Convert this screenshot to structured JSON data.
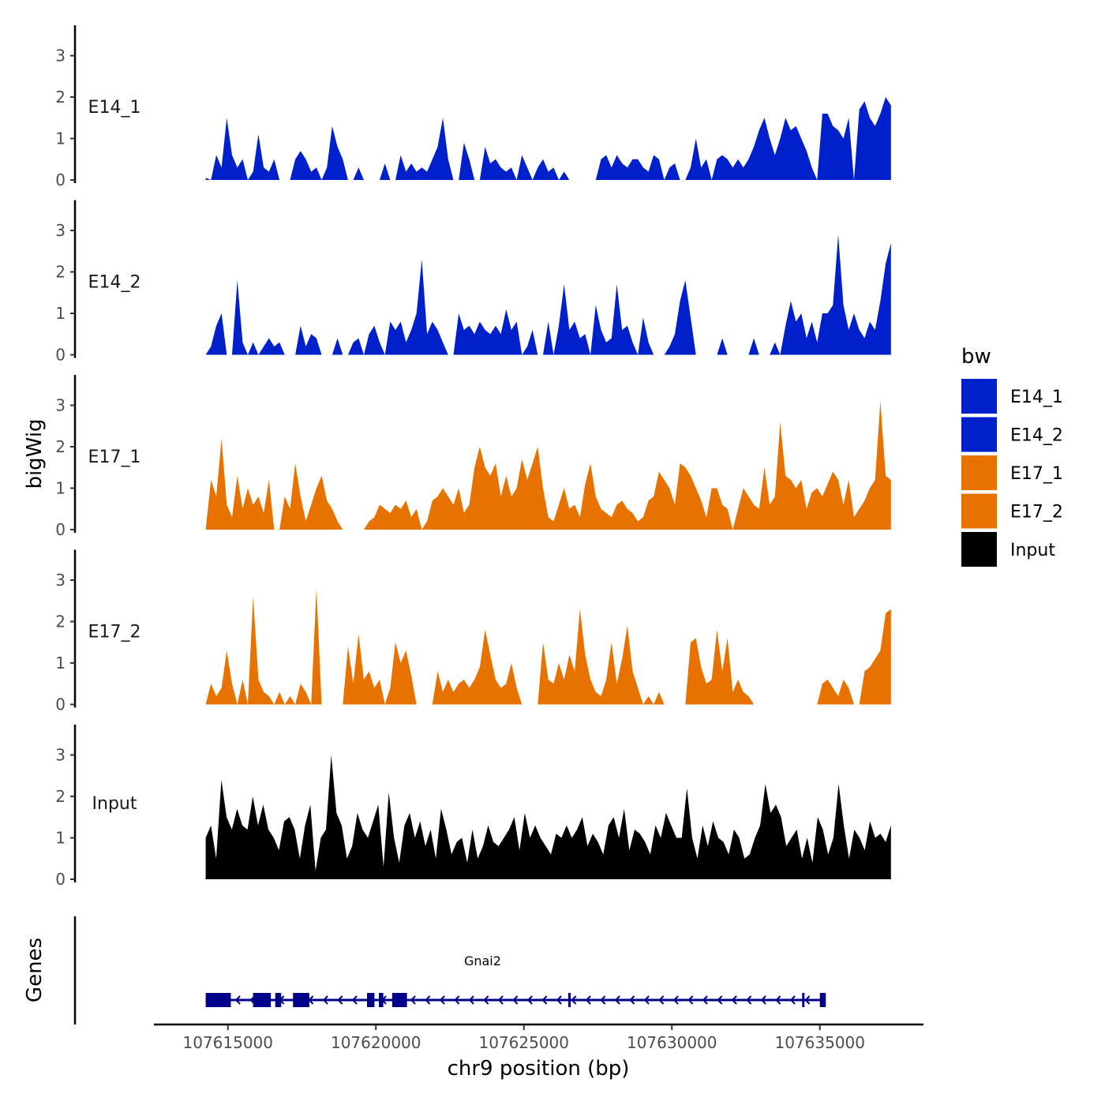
{
  "chart_data": {
    "type": "area",
    "xlabel": "chr9 position (bp)",
    "ylabel": "bigWig",
    "xlim": [
      107612500,
      107638500
    ],
    "data_range": [
      107614250,
      107637400
    ],
    "ylim": [
      0,
      3.8
    ],
    "yticks": [
      0,
      1,
      2,
      3
    ],
    "xticks": [
      107615000,
      107620000,
      107625000,
      107630000,
      107635000
    ],
    "xtick_labels": [
      "107615000",
      "107620000",
      "107625000",
      "107630000",
      "107635000"
    ],
    "tracks": [
      {
        "name": "E14_1",
        "color": "#0020CC",
        "values": [
          0.05,
          0.0,
          0.6,
          0.3,
          1.5,
          0.6,
          0.3,
          0.5,
          0.0,
          0.2,
          1.1,
          0.3,
          0.2,
          0.5,
          0.0,
          0.0,
          0.0,
          0.5,
          0.7,
          0.5,
          0.2,
          0.3,
          0.0,
          0.3,
          1.3,
          0.8,
          0.5,
          0.0,
          0.0,
          0.3,
          0.0,
          0.0,
          0.0,
          0.0,
          0.4,
          0.0,
          0.0,
          0.6,
          0.2,
          0.4,
          0.2,
          0.3,
          0.2,
          0.5,
          0.8,
          1.5,
          0.5,
          0.0,
          0.0,
          0.9,
          0.5,
          0.0,
          0.0,
          0.8,
          0.4,
          0.5,
          0.3,
          0.2,
          0.3,
          0.0,
          0.6,
          0.3,
          0.0,
          0.3,
          0.5,
          0.2,
          0.3,
          0.0,
          0.2,
          0.0,
          0.0,
          0.0,
          0.0,
          0.0,
          0.0,
          0.5,
          0.6,
          0.3,
          0.6,
          0.4,
          0.3,
          0.5,
          0.5,
          0.3,
          0.2,
          0.6,
          0.5,
          0.0,
          0.3,
          0.4,
          0.0,
          0.0,
          0.3,
          1.0,
          0.3,
          0.5,
          0.0,
          0.5,
          0.6,
          0.5,
          0.3,
          0.5,
          0.3,
          0.5,
          0.8,
          1.2,
          1.5,
          1.0,
          0.6,
          1.0,
          1.5,
          1.2,
          1.3,
          1.0,
          0.7,
          0.3,
          0.0,
          1.6,
          1.6,
          1.3,
          1.2,
          1.0,
          1.5,
          0.0,
          1.7,
          1.9,
          1.5,
          1.3,
          1.6,
          2.0,
          1.8
        ]
      },
      {
        "name": "E14_2",
        "color": "#0020CC",
        "values": [
          0.0,
          0.2,
          0.7,
          1.0,
          0.0,
          0.0,
          1.8,
          0.3,
          0.0,
          0.3,
          0.0,
          0.2,
          0.4,
          0.2,
          0.3,
          0.0,
          0.0,
          0.0,
          0.7,
          0.2,
          0.5,
          0.4,
          0.0,
          0.0,
          0.0,
          0.4,
          0.0,
          0.0,
          0.3,
          0.4,
          0.0,
          0.5,
          0.7,
          0.3,
          0.0,
          0.8,
          0.6,
          0.8,
          0.3,
          0.6,
          1.0,
          2.3,
          0.5,
          0.8,
          0.6,
          0.3,
          0.0,
          0.0,
          1.0,
          0.6,
          0.7,
          0.5,
          0.8,
          0.6,
          0.5,
          0.7,
          0.5,
          1.1,
          0.6,
          0.8,
          0.0,
          0.2,
          0.6,
          0.0,
          0.0,
          0.8,
          0.0,
          0.7,
          1.7,
          0.6,
          0.8,
          0.4,
          0.5,
          0.0,
          1.2,
          0.6,
          0.3,
          0.4,
          1.7,
          0.6,
          0.7,
          0.3,
          0.0,
          0.9,
          0.3,
          0.0,
          0.0,
          0.0,
          0.2,
          0.5,
          1.3,
          1.8,
          0.9,
          0.0,
          0.0,
          0.0,
          0.0,
          0.0,
          0.4,
          0.0,
          0.0,
          0.0,
          0.0,
          0.0,
          0.4,
          0.0,
          0.0,
          0.0,
          0.3,
          0.0,
          0.7,
          1.3,
          0.8,
          1.0,
          0.4,
          0.8,
          0.3,
          1.0,
          1.0,
          1.2,
          2.9,
          1.2,
          0.6,
          1.0,
          0.6,
          0.4,
          0.8,
          0.6,
          1.3,
          2.2,
          2.7
        ]
      },
      {
        "name": "E17_1",
        "color": "#E87200",
        "values": [
          0.0,
          1.2,
          0.8,
          2.2,
          0.6,
          0.3,
          1.3,
          0.5,
          1.0,
          0.6,
          0.8,
          0.4,
          1.2,
          0.0,
          0.0,
          0.8,
          0.5,
          1.6,
          0.8,
          0.2,
          0.6,
          1.0,
          1.3,
          0.7,
          0.5,
          0.2,
          0.0,
          0.0,
          0.0,
          0.0,
          0.0,
          0.2,
          0.3,
          0.6,
          0.5,
          0.4,
          0.6,
          0.5,
          0.7,
          0.3,
          0.5,
          0.0,
          0.2,
          0.7,
          0.8,
          1.0,
          0.8,
          0.6,
          1.0,
          0.4,
          0.6,
          1.5,
          2.0,
          1.5,
          1.3,
          1.6,
          0.8,
          1.3,
          0.8,
          1.0,
          1.7,
          1.2,
          1.6,
          2.0,
          1.0,
          0.3,
          0.2,
          0.6,
          1.0,
          0.5,
          0.6,
          0.3,
          1.1,
          1.6,
          0.8,
          0.5,
          0.4,
          0.3,
          0.6,
          0.7,
          0.5,
          0.4,
          0.2,
          0.3,
          0.7,
          0.8,
          1.4,
          1.2,
          1.0,
          0.6,
          1.6,
          1.5,
          1.3,
          1.0,
          0.7,
          0.3,
          1.0,
          1.0,
          0.6,
          0.5,
          0.0,
          0.5,
          1.0,
          0.8,
          0.6,
          0.5,
          1.5,
          0.6,
          0.8,
          2.6,
          1.3,
          1.2,
          1.0,
          1.2,
          0.5,
          0.9,
          1.0,
          0.8,
          1.1,
          1.4,
          1.2,
          0.6,
          1.2,
          0.3,
          0.5,
          0.7,
          1.0,
          1.2,
          3.1,
          1.3,
          1.2
        ]
      },
      {
        "name": "E17_2",
        "color": "#E87200",
        "values": [
          0.0,
          0.5,
          0.2,
          0.4,
          1.3,
          0.5,
          0.0,
          0.6,
          0.0,
          2.6,
          0.6,
          0.3,
          0.2,
          0.0,
          0.3,
          0.0,
          0.2,
          0.0,
          0.5,
          0.3,
          0.0,
          2.8,
          0.0,
          0.0,
          0.0,
          0.0,
          0.0,
          1.4,
          0.5,
          1.7,
          0.6,
          0.8,
          0.4,
          0.6,
          0.0,
          0.4,
          1.5,
          1.0,
          1.3,
          0.7,
          0.0,
          0.0,
          0.0,
          0.0,
          0.8,
          0.3,
          0.6,
          0.3,
          0.5,
          0.6,
          0.4,
          0.6,
          0.9,
          1.8,
          1.2,
          0.6,
          0.4,
          0.5,
          1.0,
          0.4,
          0.0,
          0.0,
          0.0,
          0.0,
          1.5,
          0.6,
          0.5,
          1.0,
          0.6,
          1.2,
          0.8,
          2.3,
          1.2,
          0.6,
          0.3,
          0.2,
          0.6,
          1.5,
          0.5,
          1.1,
          1.9,
          0.8,
          0.4,
          0.0,
          0.2,
          0.0,
          0.3,
          0.0,
          0.0,
          0.0,
          0.0,
          0.0,
          1.5,
          1.6,
          0.9,
          0.5,
          0.6,
          1.8,
          0.8,
          1.6,
          0.3,
          0.6,
          0.3,
          0.2,
          0.0,
          0.0,
          0.0,
          0.0,
          0.0,
          0.0,
          0.0,
          0.0,
          0.0,
          0.0,
          0.0,
          0.0,
          0.0,
          0.5,
          0.6,
          0.4,
          0.2,
          0.6,
          0.4,
          0.0,
          0.0,
          0.8,
          0.9,
          1.1,
          1.3,
          2.2,
          2.3
        ]
      },
      {
        "name": "Input",
        "color": "#000000",
        "values": [
          1.0,
          1.3,
          0.5,
          2.4,
          1.5,
          1.2,
          1.7,
          1.3,
          1.2,
          2.0,
          1.3,
          1.8,
          1.2,
          1.0,
          0.7,
          1.4,
          1.5,
          1.2,
          0.5,
          1.3,
          1.8,
          0.2,
          1.0,
          1.2,
          3.0,
          1.6,
          1.3,
          0.5,
          0.8,
          1.6,
          1.2,
          1.0,
          1.4,
          1.8,
          0.3,
          2.1,
          1.0,
          0.4,
          1.3,
          1.6,
          1.0,
          1.4,
          0.8,
          1.2,
          0.5,
          1.7,
          1.2,
          0.6,
          0.9,
          1.0,
          0.4,
          1.2,
          0.5,
          0.8,
          1.3,
          0.9,
          0.8,
          1.0,
          1.2,
          1.5,
          0.7,
          1.6,
          1.0,
          1.3,
          1.0,
          0.8,
          0.6,
          1.1,
          1.0,
          1.3,
          1.0,
          1.2,
          1.5,
          0.8,
          1.1,
          0.9,
          0.6,
          1.3,
          1.5,
          1.0,
          1.7,
          0.7,
          1.2,
          1.1,
          0.9,
          0.6,
          1.3,
          1.0,
          1.6,
          1.3,
          1.0,
          1.0,
          2.2,
          1.0,
          0.5,
          1.3,
          0.8,
          1.4,
          1.0,
          0.9,
          0.6,
          1.2,
          1.0,
          0.5,
          0.6,
          1.0,
          1.3,
          2.3,
          1.6,
          1.8,
          1.5,
          0.8,
          1.0,
          1.2,
          0.5,
          1.0,
          0.4,
          1.5,
          1.2,
          0.6,
          1.0,
          2.3,
          1.3,
          0.5,
          1.2,
          1.0,
          0.7,
          1.4,
          1.0,
          1.1,
          0.9,
          1.3
        ]
      }
    ],
    "legend": {
      "title": "bw",
      "position": "right",
      "entries": [
        {
          "label": "E14_1",
          "color": "#0020CC"
        },
        {
          "label": "E14_2",
          "color": "#0020CC"
        },
        {
          "label": "E17_1",
          "color": "#E87200"
        },
        {
          "label": "E17_2",
          "color": "#E87200"
        },
        {
          "label": "Input",
          "color": "#000000"
        }
      ]
    },
    "genes": {
      "title": "Genes",
      "color": "#00008B",
      "items": [
        {
          "name": "Gnai2",
          "start": 107614250,
          "end": 107635200,
          "strand": "-",
          "exons": [
            [
              107614250,
              107615100
            ],
            [
              107615850,
              107616450
            ],
            [
              107616600,
              107616800
            ],
            [
              107617200,
              107617750
            ],
            [
              107619700,
              107619950
            ],
            [
              107620100,
              107620250
            ],
            [
              107620550,
              107621050
            ],
            [
              107626500,
              107626550
            ],
            [
              107634400,
              107634450
            ],
            [
              107635000,
              107635200
            ]
          ]
        }
      ]
    }
  }
}
